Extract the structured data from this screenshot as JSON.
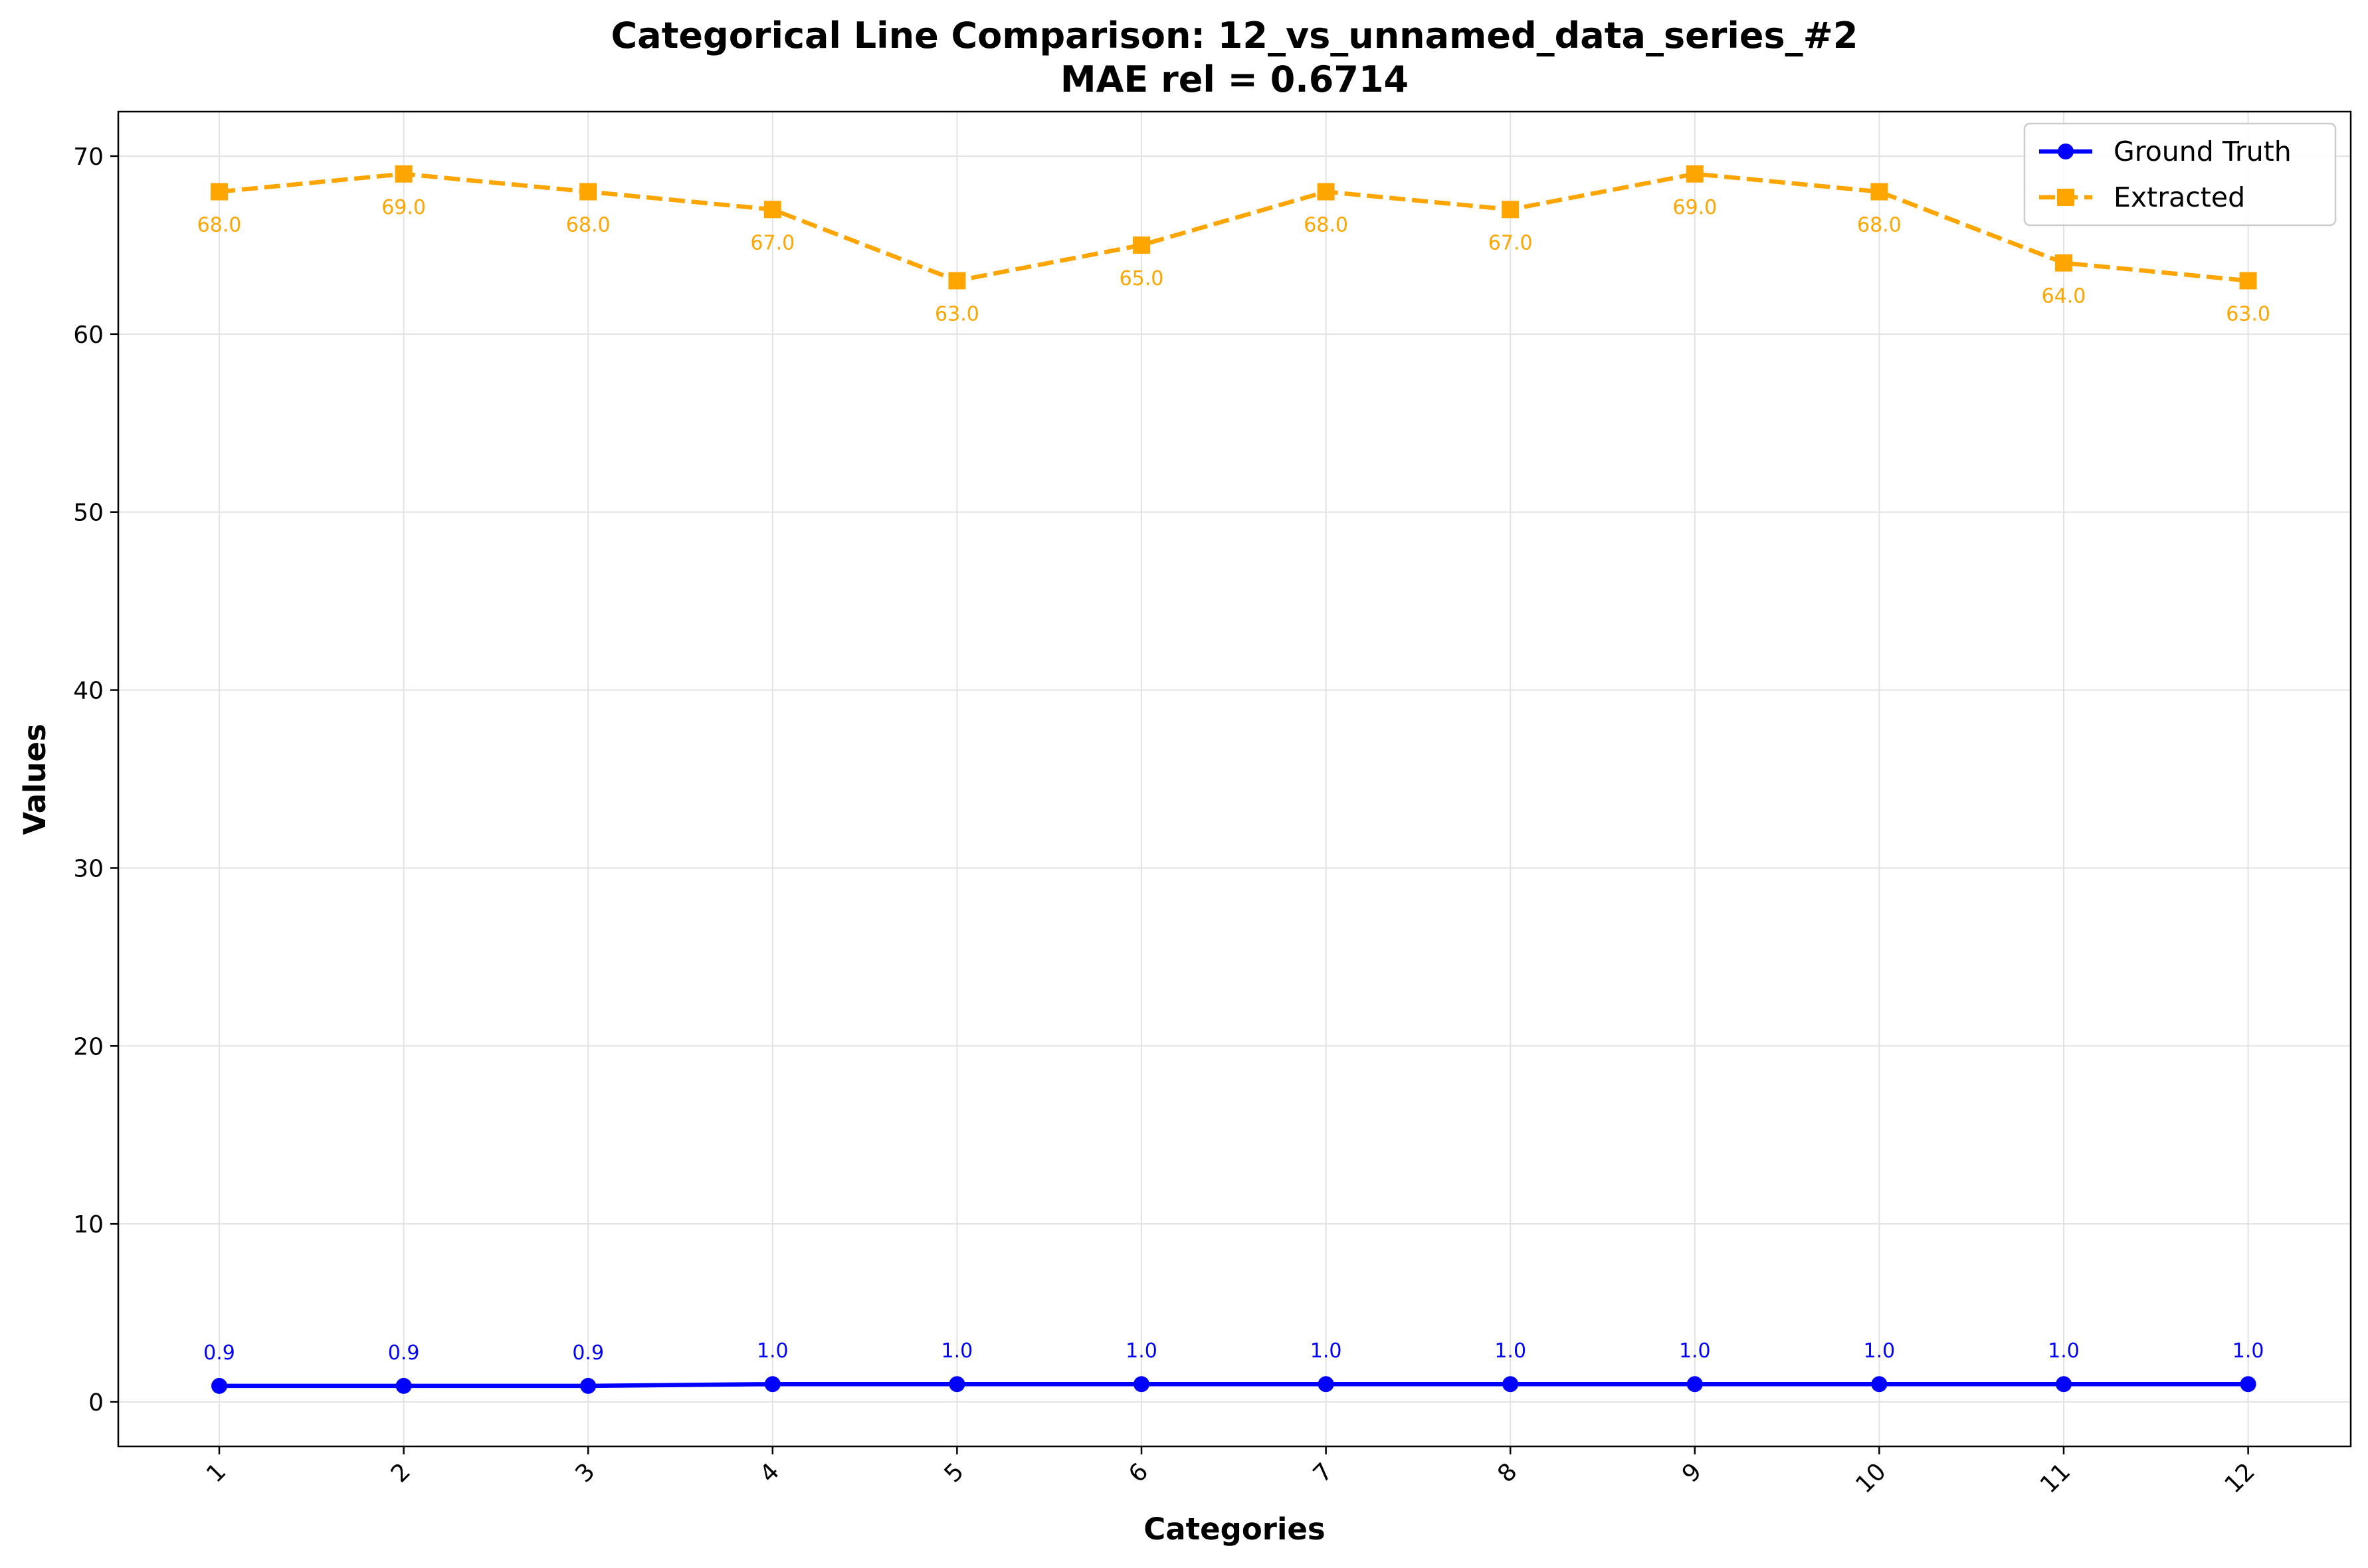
{
  "chart_data": {
    "type": "line",
    "title_line1": "Categorical Line Comparison: 12_vs_unnamed_data_series_#2",
    "title_line2": "MAE rel = 0.6714",
    "xlabel": "Categories",
    "ylabel": "Values",
    "categories": [
      "1",
      "2",
      "3",
      "4",
      "5",
      "6",
      "7",
      "8",
      "9",
      "10",
      "11",
      "12"
    ],
    "ylim": [
      -2.5,
      72.5
    ],
    "yticks": [
      0,
      10,
      20,
      30,
      40,
      50,
      60,
      70
    ],
    "grid": true,
    "legend_position": "top-right",
    "series": [
      {
        "name": "Ground Truth",
        "color": "#0000ff",
        "line_style": "solid",
        "marker": "circle",
        "label_position": "above",
        "values": [
          0.9,
          0.9,
          0.9,
          1.0,
          1.0,
          1.0,
          1.0,
          1.0,
          1.0,
          1.0,
          1.0,
          1.0
        ],
        "labels": [
          "0.9",
          "0.9",
          "0.9",
          "1.0",
          "1.0",
          "1.0",
          "1.0",
          "1.0",
          "1.0",
          "1.0",
          "1.0",
          "1.0"
        ]
      },
      {
        "name": "Extracted",
        "color": "#ffa500",
        "line_style": "dashed",
        "marker": "square",
        "label_position": "below",
        "values": [
          68.0,
          69.0,
          68.0,
          67.0,
          63.0,
          65.0,
          68.0,
          67.0,
          69.0,
          68.0,
          64.0,
          63.0
        ],
        "labels": [
          "68.0",
          "69.0",
          "68.0",
          "67.0",
          "63.0",
          "65.0",
          "68.0",
          "67.0",
          "69.0",
          "68.0",
          "64.0",
          "63.0"
        ]
      }
    ]
  }
}
